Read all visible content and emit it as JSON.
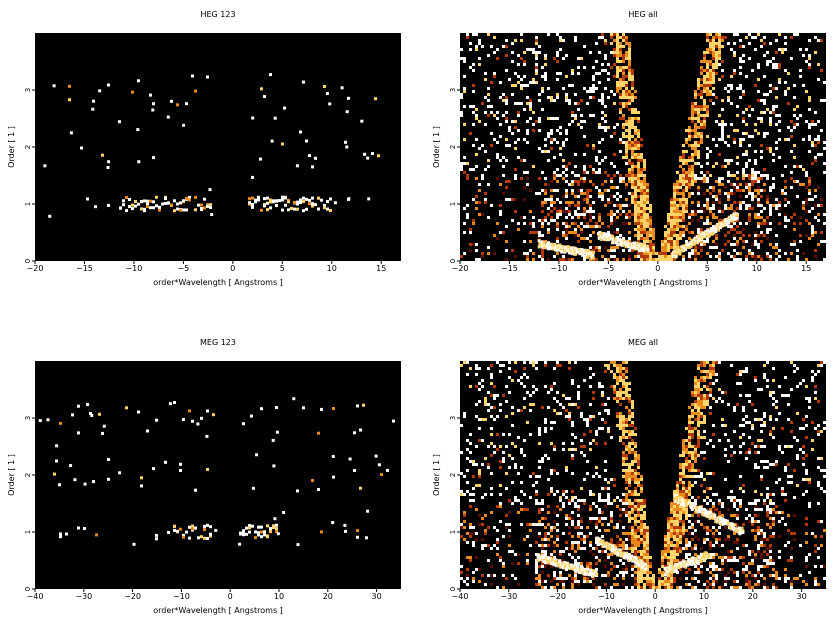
{
  "chart_data": [
    {
      "type": "heatmap",
      "title": "HEG 123",
      "xlabel": "order*Wavelength [ Angstroms ]",
      "ylabel": "Order [ 1 ]",
      "xlim": [
        -20,
        17
      ],
      "ylim": [
        0,
        4
      ],
      "xticks": [
        -20,
        -15,
        -10,
        -5,
        0,
        5,
        10,
        15
      ],
      "yticks": [
        0,
        1,
        2,
        3
      ],
      "colormap": [
        "#000000",
        "#5a0d02",
        "#b33a06",
        "#e98a1a",
        "#ffd56a",
        "#ffffff"
      ],
      "gap_x": [
        -2.2,
        1.5
      ],
      "bands": [
        {
          "order": 1,
          "x_range": [
            -16,
            12
          ],
          "bright_x": [
            [
              -11.5,
              -2
            ],
            [
              1.5,
              10
            ]
          ]
        },
        {
          "order": 2,
          "x_range": [
            -18,
            15
          ],
          "bright_x": []
        },
        {
          "order": 3,
          "x_range": [
            -17,
            15
          ],
          "bright_x": []
        }
      ]
    },
    {
      "type": "heatmap",
      "title": "HEG all",
      "xlabel": "order*Wavelength [ Angstroms ]",
      "ylabel": "Order [ 1 ]",
      "xlim": [
        -20,
        17
      ],
      "ylim": [
        0,
        4
      ],
      "xticks": [
        -20,
        -15,
        -10,
        -5,
        0,
        5,
        10,
        15
      ],
      "yticks": [
        0,
        1,
        2,
        3
      ],
      "colormap": [
        "#000000",
        "#5a0d02",
        "#b33a06",
        "#e98a1a",
        "#ffd56a",
        "#ffffff"
      ],
      "wedge": {
        "vertex_x": 0,
        "left_slope": -0.75,
        "right_slope": 1.25
      },
      "streaks": [
        {
          "x0": -12,
          "x1": -6.5,
          "y_at_x0": 0.3,
          "y_at_x1": 0.1
        },
        {
          "x0": -6,
          "x1": -1,
          "y_at_x0": 0.45,
          "y_at_x1": 0.2
        },
        {
          "x0": 1.5,
          "x1": 8,
          "y_at_x0": 0.1,
          "y_at_x1": 0.8
        }
      ]
    },
    {
      "type": "heatmap",
      "title": "MEG 123",
      "xlabel": "order*Wavelength [ Angstroms ]",
      "ylabel": "Order [ 1 ]",
      "xlim": [
        -40,
        35
      ],
      "ylim": [
        0,
        4
      ],
      "xticks": [
        -40,
        -30,
        -20,
        -10,
        0,
        10,
        20,
        30
      ],
      "yticks": [
        0,
        1,
        2,
        3
      ],
      "colormap": [
        "#000000",
        "#5a0d02",
        "#b33a06",
        "#e98a1a",
        "#ffd56a",
        "#ffffff"
      ],
      "gap_x": [
        -3,
        1.5
      ],
      "bands": [
        {
          "order": 1,
          "x_range": [
            -35,
            30
          ],
          "bright_x": [
            [
              -12,
              -4
            ],
            [
              2,
              10
            ]
          ]
        },
        {
          "order": 2,
          "x_range": [
            -37,
            34
          ],
          "bright_x": []
        },
        {
          "order": 3,
          "x_range": [
            -36,
            34
          ],
          "bright_x": []
        }
      ]
    },
    {
      "type": "heatmap",
      "title": "MEG all",
      "xlabel": "order*Wavelength [ Angstroms ]",
      "ylabel": "Order [ 1 ]",
      "xlim": [
        -40,
        35
      ],
      "ylim": [
        0,
        4
      ],
      "xticks": [
        -40,
        -30,
        -20,
        -10,
        0,
        10,
        20,
        30
      ],
      "yticks": [
        0,
        1,
        2,
        3
      ],
      "colormap": [
        "#000000",
        "#5a0d02",
        "#b33a06",
        "#e98a1a",
        "#ffd56a",
        "#ffffff"
      ],
      "wedge": {
        "vertex_x": 0,
        "left_slope": -1.4,
        "right_slope": 2.2
      },
      "streaks": [
        {
          "x0": -24,
          "x1": -12,
          "y_at_x0": 0.55,
          "y_at_x1": 0.25
        },
        {
          "x0": -12,
          "x1": -2,
          "y_at_x0": 0.85,
          "y_at_x1": 0.4
        },
        {
          "x0": 2,
          "x1": 11,
          "y_at_x0": 0.3,
          "y_at_x1": 0.6
        },
        {
          "x0": 4,
          "x1": 18,
          "y_at_x0": 1.6,
          "y_at_x1": 1.0
        }
      ]
    }
  ]
}
